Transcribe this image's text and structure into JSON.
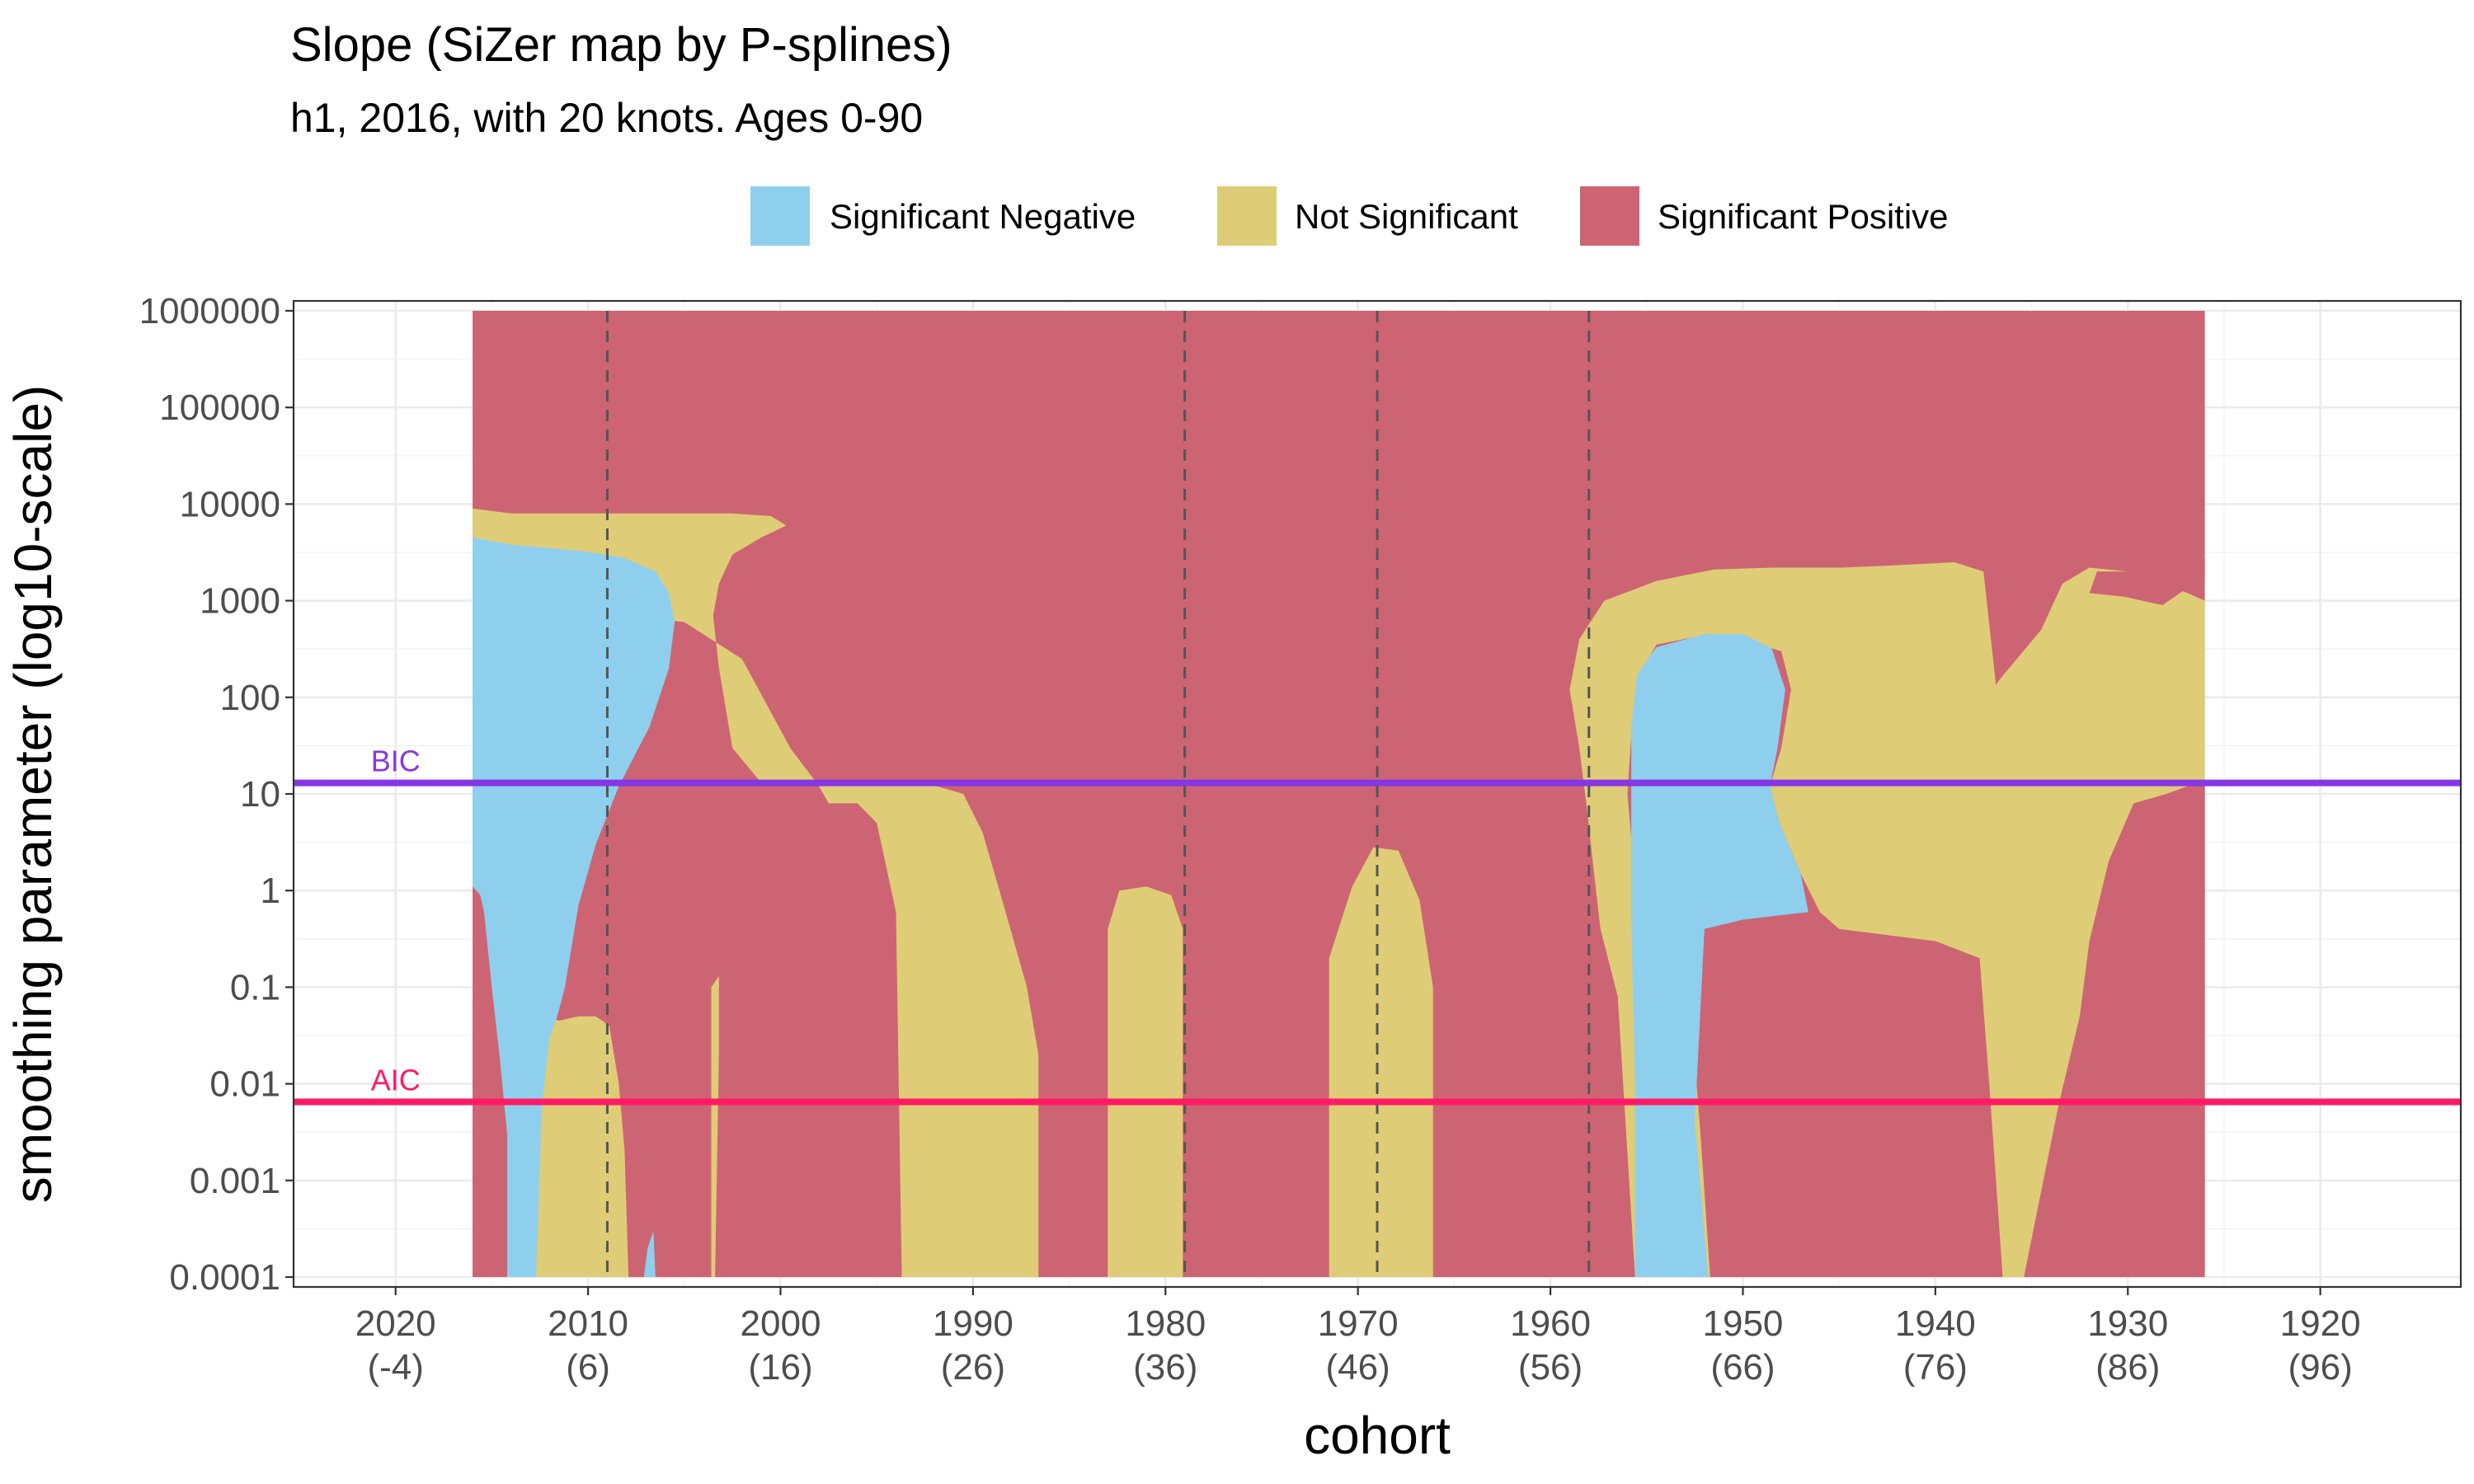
{
  "title": "Slope (SiZer map by P-splines)",
  "subtitle": "h1, 2016, with 20 knots. Ages 0-90",
  "legend": {
    "items": [
      {
        "label": "Significant Negative",
        "color": "#8ecfee"
      },
      {
        "label": "Not Significant",
        "color": "#dfcc77"
      },
      {
        "label": "Significant Positive",
        "color": "#cd6473"
      }
    ]
  },
  "chart_data": {
    "type": "heatmap",
    "title": "Slope (SiZer map by P-splines)",
    "subtitle": "h1, 2016, with 20 knots. Ages 0-90",
    "xlabel": "cohort",
    "ylabel": "smoothing parameter (log10-scale)",
    "x_reversed": true,
    "xlim": [
      1912.7,
      2025.3
    ],
    "y_log10": true,
    "ylim": [
      0.0001,
      1000000
    ],
    "x_ticks": [
      {
        "value": 2020,
        "label": "2020",
        "sublabel": "(-4)"
      },
      {
        "value": 2010,
        "label": "2010",
        "sublabel": "(6)"
      },
      {
        "value": 2000,
        "label": "2000",
        "sublabel": "(16)"
      },
      {
        "value": 1990,
        "label": "1990",
        "sublabel": "(26)"
      },
      {
        "value": 1980,
        "label": "1980",
        "sublabel": "(36)"
      },
      {
        "value": 1970,
        "label": "1970",
        "sublabel": "(46)"
      },
      {
        "value": 1960,
        "label": "1960",
        "sublabel": "(56)"
      },
      {
        "value": 1950,
        "label": "1950",
        "sublabel": "(66)"
      },
      {
        "value": 1940,
        "label": "1940",
        "sublabel": "(76)"
      },
      {
        "value": 1930,
        "label": "1930",
        "sublabel": "(86)"
      },
      {
        "value": 1920,
        "label": "1920",
        "sublabel": "(96)"
      }
    ],
    "y_ticks": [
      {
        "value": 0.0001,
        "label": "0.0001"
      },
      {
        "value": 0.001,
        "label": "0.001"
      },
      {
        "value": 0.01,
        "label": "0.01"
      },
      {
        "value": 0.1,
        "label": "0.1"
      },
      {
        "value": 1,
        "label": "1"
      },
      {
        "value": 10,
        "label": "10"
      },
      {
        "value": 100,
        "label": "100"
      },
      {
        "value": 1000,
        "label": "1000"
      },
      {
        "value": 10000,
        "label": "10000"
      },
      {
        "value": 100000,
        "label": "100000"
      },
      {
        "value": 1000000,
        "label": "1000000"
      }
    ],
    "x_range": [
      1926,
      2016
    ],
    "y_range": [
      0.0001,
      1000000
    ],
    "categories": [
      "Significant Negative",
      "Not Significant",
      "Significant Positive"
    ],
    "colors": {
      "Significant Negative": "#8ecfee",
      "Not Significant": "#dfcc77",
      "Significant Positive": "#cd6473"
    },
    "background_category": "Significant Positive",
    "regions": [
      {
        "category": "Not Significant",
        "boundary": [
          [
            2016,
            0.0001
          ],
          [
            2016,
            1.1
          ],
          [
            2015.6,
            0.9
          ],
          [
            2015.4,
            0.6
          ],
          [
            2015,
            0.1
          ],
          [
            2014.6,
            0.02
          ],
          [
            2014.2,
            0.003
          ],
          [
            2014.2,
            0.0001
          ],
          [
            2007.9,
            0.0001
          ],
          [
            2008.1,
            0.002
          ],
          [
            2008.4,
            0.01
          ],
          [
            2008.9,
            0.04
          ],
          [
            2009.6,
            0.05
          ],
          [
            2010.5,
            0.05
          ],
          [
            2011.5,
            0.045
          ],
          [
            2012.2,
            0.05
          ],
          [
            2012.8,
            0.09
          ],
          [
            2013.2,
            0.3
          ],
          [
            2013.6,
            1
          ],
          [
            2014.1,
            3
          ],
          [
            2014.4,
            0.8
          ],
          [
            2014.6,
            5
          ],
          [
            2013.4,
            60
          ],
          [
            2011.8,
            500
          ],
          [
            2010,
            800
          ],
          [
            2005,
            600
          ],
          [
            2002,
            250
          ],
          [
            1999.5,
            30
          ],
          [
            1998,
            12
          ],
          [
            1997.5,
            8
          ],
          [
            1996,
            8
          ],
          [
            1995,
            5
          ],
          [
            1994,
            0.6
          ],
          [
            1993.7,
            0.0001
          ],
          [
            1990,
            0.0001
          ],
          [
            1986.6,
            0.0001
          ],
          [
            1986.6,
            0.02
          ],
          [
            1987.2,
            0.1
          ],
          [
            1988.4,
            0.7
          ],
          [
            1989.5,
            4
          ],
          [
            1990.5,
            10
          ],
          [
            1992.5,
            13
          ],
          [
            1996,
            13
          ],
          [
            2000,
            13
          ],
          [
            2001,
            13
          ],
          [
            2002.5,
            30
          ],
          [
            2003.2,
            200
          ],
          [
            2003.5,
            700
          ],
          [
            2003.2,
            1500
          ],
          [
            2002.5,
            3000
          ],
          [
            2001,
            4500
          ],
          [
            1999.7,
            6000
          ],
          [
            2000.5,
            7500
          ],
          [
            2002.5,
            8000
          ],
          [
            2005,
            8000
          ],
          [
            2009,
            8000
          ],
          [
            2012,
            8000
          ],
          [
            2014,
            8000
          ],
          [
            2016,
            9000
          ]
        ]
      },
      {
        "category": "Significant Negative",
        "boundary": [
          [
            2016,
            4500
          ],
          [
            2014,
            3800
          ],
          [
            2012,
            3500
          ],
          [
            2010,
            3200
          ],
          [
            2008.2,
            2800
          ],
          [
            2006.5,
            2000
          ],
          [
            2005.8,
            1200
          ],
          [
            2005.5,
            600
          ],
          [
            2005.8,
            200
          ],
          [
            2006.8,
            50
          ],
          [
            2008.4,
            12
          ],
          [
            2009.6,
            3
          ],
          [
            2010.5,
            0.7
          ],
          [
            2011.2,
            0.1
          ],
          [
            2011.6,
            0.05
          ],
          [
            2012,
            0.03
          ],
          [
            2012.4,
            0.006
          ],
          [
            2012.7,
            0.0001
          ],
          [
            2014.2,
            0.0001
          ],
          [
            2014.2,
            0.003
          ],
          [
            2014.6,
            0.02
          ],
          [
            2015,
            0.1
          ],
          [
            2015.4,
            0.6
          ],
          [
            2015.6,
            0.9
          ],
          [
            2016,
            1.1
          ]
        ]
      },
      {
        "category": "Significant Positive",
        "boundary": [
          [
            2016,
            0.0001
          ],
          [
            2016,
            0.07
          ],
          [
            2015.7,
            0.07
          ],
          [
            2015.5,
            0.006
          ],
          [
            2015.4,
            0.0001
          ]
        ]
      },
      {
        "category": "Significant Positive",
        "boundary": [
          [
            2000,
            0.0001
          ],
          [
            2000.8,
            0.006
          ],
          [
            2001.2,
            0.08
          ],
          [
            2002,
            0.4
          ],
          [
            2002.8,
            1.1
          ],
          [
            2003.6,
            2.5
          ],
          [
            2003.2,
            8
          ],
          [
            2001.7,
            10
          ],
          [
            1999.5,
            10
          ],
          [
            1998.8,
            0.3
          ],
          [
            1998.2,
            0.0001
          ]
        ]
      },
      {
        "category": "Not Significant",
        "boundary": [
          [
            2003.6,
            0.1
          ],
          [
            2003.2,
            0.13
          ],
          [
            2003.2,
            0.02
          ],
          [
            2003.4,
            0.0001
          ],
          [
            2003.6,
            0.0001
          ]
        ]
      },
      {
        "category": "Significant Negative",
        "boundary": [
          [
            2006.5,
            0.0001
          ],
          [
            2006.6,
            0.0003
          ],
          [
            2006.9,
            0.0002
          ],
          [
            2007.1,
            0.0001
          ]
        ]
      },
      {
        "category": "Not Significant",
        "boundary": [
          [
            1979.1,
            0.0001
          ],
          [
            1979.1,
            0.4
          ],
          [
            1979.7,
            0.9
          ],
          [
            1981,
            1.1
          ],
          [
            1982.4,
            1
          ],
          [
            1983,
            0.4
          ],
          [
            1983,
            0.0001
          ]
        ]
      },
      {
        "category": "Not Significant",
        "boundary": [
          [
            1966.1,
            0.0001
          ],
          [
            1966.1,
            0.1
          ],
          [
            1966.8,
            0.8
          ],
          [
            1967.9,
            2.6
          ],
          [
            1969.2,
            2.8
          ],
          [
            1970.3,
            1.1
          ],
          [
            1971.5,
            0.2
          ],
          [
            1971.5,
            0.0001
          ]
        ]
      },
      {
        "category": "Not Significant",
        "boundary": [
          [
            1926,
            0.0001
          ],
          [
            1926,
            1000
          ],
          [
            1928,
            1500
          ],
          [
            1930,
            2000
          ],
          [
            1932,
            2200
          ],
          [
            1933.4,
            1500
          ],
          [
            1934.5,
            500
          ],
          [
            1936.7,
            150
          ],
          [
            1938,
            60
          ],
          [
            1938.8,
            20
          ],
          [
            1939.4,
            10
          ],
          [
            1938.4,
            2
          ],
          [
            1937,
            0.5
          ],
          [
            1936.5,
            0.15
          ],
          [
            1935.4,
            0.0001
          ],
          [
            1932.6,
            0.0001
          ],
          [
            1932.6,
            0.02
          ],
          [
            1932.8,
            0.1
          ],
          [
            1933.5,
            0.6
          ],
          [
            1934.5,
            1.5
          ],
          [
            1935.3,
            3
          ],
          [
            1935.8,
            8
          ],
          [
            1936.4,
            20
          ],
          [
            1937.5,
            2000
          ],
          [
            1939,
            2500
          ],
          [
            1942.6,
            2300
          ],
          [
            1944.9,
            2200
          ],
          [
            1948.5,
            2200
          ],
          [
            1951.5,
            2100
          ],
          [
            1954.5,
            1600
          ],
          [
            1957.2,
            1000
          ],
          [
            1958.5,
            400
          ],
          [
            1959,
            120
          ],
          [
            1958.5,
            30
          ],
          [
            1958.1,
            7
          ],
          [
            1957.8,
            2
          ],
          [
            1957.4,
            0.4
          ],
          [
            1956.5,
            0.08
          ],
          [
            1955.6,
            0.0001
          ],
          [
            1951.7,
            0.0001
          ],
          [
            1952.2,
            0.003
          ],
          [
            1952.6,
            0.03
          ],
          [
            1952.8,
            0.3
          ],
          [
            1954,
            1.8
          ],
          [
            1955.8,
            3.5
          ],
          [
            1956,
            10
          ],
          [
            1955.8,
            40
          ],
          [
            1955.5,
            150
          ],
          [
            1954.5,
            350
          ],
          [
            1951.8,
            450
          ],
          [
            1950,
            400
          ],
          [
            1948,
            300
          ],
          [
            1947.5,
            120
          ],
          [
            1948,
            30
          ],
          [
            1948.6,
            12
          ],
          [
            1948.1,
            5
          ],
          [
            1947,
            1.5
          ],
          [
            1946,
            0.6
          ],
          [
            1945,
            0.4
          ],
          [
            1940,
            0.3
          ],
          [
            1937.7,
            0.2
          ],
          [
            1937.2,
            0.01
          ],
          [
            1936.5,
            0.0001
          ]
        ]
      },
      {
        "category": "Significant Negative",
        "boundary": [
          [
            1955.6,
            0.0001
          ],
          [
            1955.6,
            0.01
          ],
          [
            1955.8,
            0.5
          ],
          [
            1955.8,
            50
          ],
          [
            1955.5,
            170
          ],
          [
            1954.5,
            330
          ],
          [
            1952,
            450
          ],
          [
            1950,
            450
          ],
          [
            1948.5,
            320
          ],
          [
            1947.8,
            120
          ],
          [
            1948.2,
            30
          ],
          [
            1948.6,
            12
          ],
          [
            1948.1,
            5
          ],
          [
            1947,
            1.5
          ],
          [
            1946.6,
            0.6
          ],
          [
            1950,
            0.5
          ],
          [
            1952,
            0.4
          ],
          [
            1952.5,
            0.004
          ],
          [
            1951.8,
            0.0001
          ]
        ]
      },
      {
        "category": "Significant Positive",
        "boundary": [
          [
            1926,
            1800
          ],
          [
            1926,
            2800
          ],
          [
            1928,
            2500
          ],
          [
            1929.5,
            2000
          ],
          [
            1931.6,
            2000
          ],
          [
            1932,
            1200
          ],
          [
            1930.2,
            1100
          ],
          [
            1928.2,
            900
          ]
        ]
      },
      {
        "category": "Significant Positive",
        "boundary": [
          [
            1926,
            0.0001
          ],
          [
            1926,
            14
          ],
          [
            1928,
            10
          ],
          [
            1929.7,
            8
          ],
          [
            1931,
            2
          ],
          [
            1932,
            0.3
          ],
          [
            1932.5,
            0.05
          ],
          [
            1933.6,
            0.006
          ],
          [
            1935.4,
            0.0001
          ]
        ]
      }
    ],
    "vertical_dashed_lines": [
      2009,
      1979,
      1969,
      1958
    ],
    "reference_lines": [
      {
        "name": "BIC",
        "label": "BIC",
        "y": 13,
        "color": "#8637e4"
      },
      {
        "name": "AIC",
        "label": "AIC",
        "y": 0.0065,
        "color": "#ff1a66"
      }
    ],
    "grid": true,
    "legend_position": "top"
  }
}
